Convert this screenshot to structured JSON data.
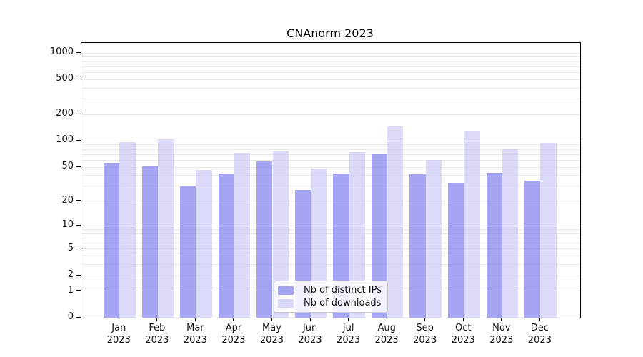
{
  "chart_data": {
    "type": "bar",
    "title": "CNAnorm 2023",
    "categories": [
      "Jan",
      "Feb",
      "Mar",
      "Apr",
      "May",
      "Jun",
      "Jul",
      "Aug",
      "Sep",
      "Oct",
      "Nov",
      "Dec"
    ],
    "category_year": "2023",
    "series": [
      {
        "name": "Nb of distinct IPs",
        "color": "rgba(130,130,240,0.72)",
        "color_hex_on_white": "#a5a5f4",
        "values": [
          56,
          51,
          30,
          42,
          58,
          27,
          42,
          70,
          41,
          33,
          43,
          35
        ]
      },
      {
        "name": "Nb of downloads",
        "color": "rgba(200,200,246,0.65)",
        "color_hex_on_white": "#dbdbf9",
        "values": [
          97,
          104,
          46,
          73,
          76,
          48,
          74,
          147,
          61,
          128,
          80,
          95
        ]
      }
    ],
    "yaxis": {
      "ticks": [
        0,
        1,
        2,
        5,
        10,
        20,
        50,
        100,
        200,
        500,
        1000
      ],
      "scale": "log10(1+x)",
      "range_top_value": 1300
    },
    "xlabel": "",
    "ylabel": "",
    "grid": {
      "major_lines_at": [
        1,
        10,
        100
      ],
      "minor_lines": "2-9 per decade, plus 1000"
    },
    "legend": {
      "position": "lower center",
      "entries": [
        "Nb of distinct IPs",
        "Nb of downloads"
      ]
    }
  }
}
